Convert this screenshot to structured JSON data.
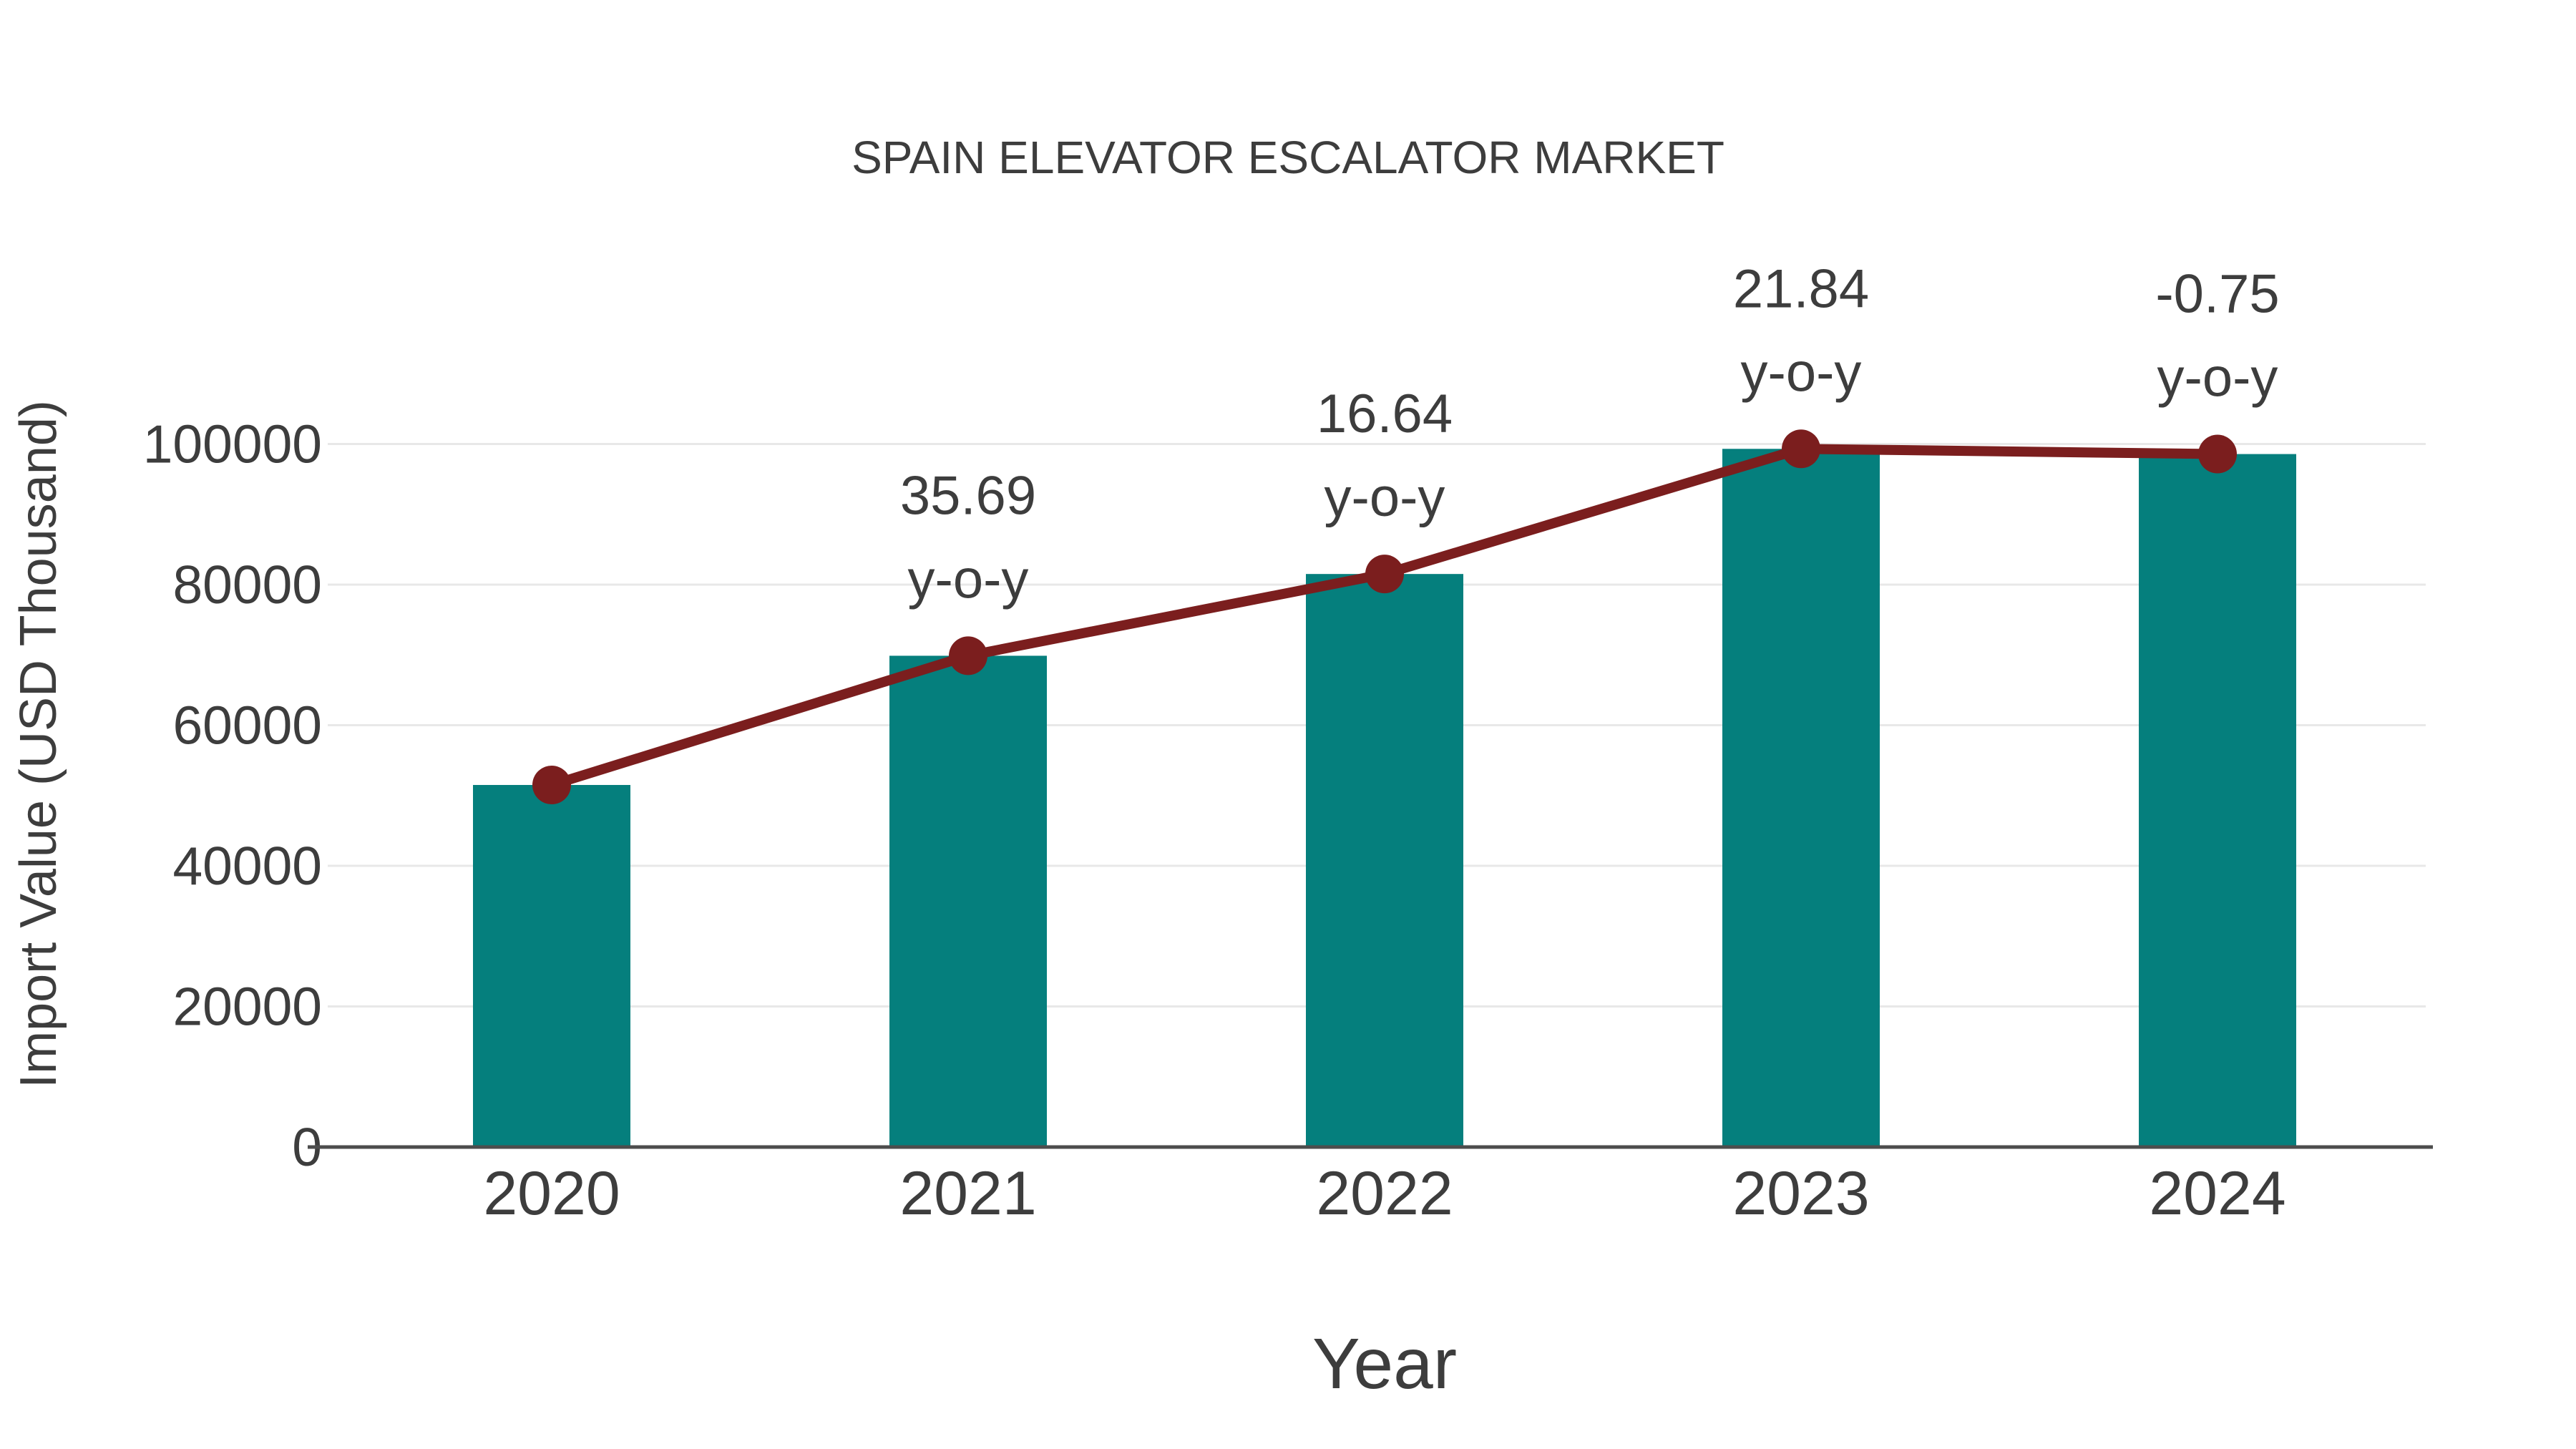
{
  "title": "SPAIN ELEVATOR ESCALATOR MARKET",
  "chart_data": {
    "type": "bar",
    "title": "SPAIN ELEVATOR ESCALATOR MARKET",
    "xlabel": "Year",
    "ylabel": "Import Value (USD Thousand)",
    "categories": [
      "2020",
      "2021",
      "2022",
      "2023",
      "2024"
    ],
    "series": [
      {
        "name": "Import Value (USD Thousand)",
        "type": "bar",
        "values": [
          51500,
          69880,
          81510,
          99310,
          98570
        ]
      },
      {
        "name": "y-o-y growth",
        "type": "line",
        "values": [
          51500,
          69880,
          81510,
          99310,
          98570
        ]
      }
    ],
    "annotations": [
      {
        "category": "2021",
        "line1": "35.69",
        "line2": "y-o-y"
      },
      {
        "category": "2022",
        "line1": "16.64",
        "line2": "y-o-y"
      },
      {
        "category": "2023",
        "line1": "21.84",
        "line2": "y-o-y"
      },
      {
        "category": "2024",
        "line1": "-0.75",
        "line2": "y-o-y"
      }
    ],
    "yticks": [
      0,
      20000,
      40000,
      60000,
      80000,
      100000
    ],
    "ylim": [
      0,
      100000
    ],
    "grid": true,
    "legend": "none",
    "colors": {
      "bar": "#057f7d",
      "line": "#7b1e1e",
      "marker": "#7b1e1e",
      "text": "#3d3d3d",
      "grid": "#e8e8e8",
      "axis": "#4d4d4d",
      "background": "#ffffff"
    }
  }
}
